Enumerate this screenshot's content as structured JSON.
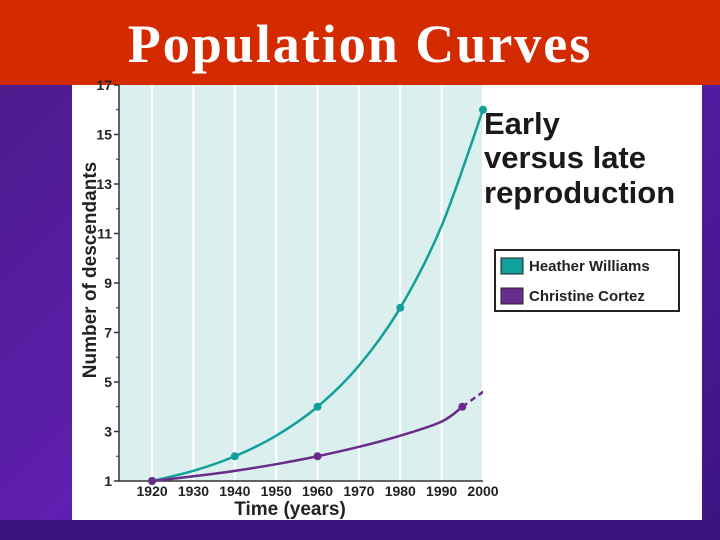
{
  "slide": {
    "title": "Population Curves"
  },
  "chart_data": {
    "type": "line",
    "heading_lines": [
      "Early",
      "versus late",
      "reproduction"
    ],
    "xlabel": "Time (years)",
    "ylabel": "Number of descendants",
    "xlim": [
      1912,
      2000
    ],
    "ylim": [
      1,
      17
    ],
    "x_ticks": [
      1920,
      1930,
      1940,
      1950,
      1960,
      1970,
      1980,
      1990,
      2000
    ],
    "y_ticks": [
      1,
      3,
      5,
      7,
      9,
      11,
      13,
      15,
      17
    ],
    "y_minor_ticks": [
      2,
      4,
      6,
      8,
      10,
      12,
      14,
      16
    ],
    "grid": "vertical",
    "legend_placement": "right",
    "colors": {
      "plot_background": "#dcefef",
      "grid": "#ffffff"
    },
    "series": [
      {
        "name": "Heather Williams",
        "color": "#12a09a",
        "points": [
          {
            "x": 1920,
            "y": 1
          },
          {
            "x": 1940,
            "y": 2
          },
          {
            "x": 1960,
            "y": 4
          },
          {
            "x": 1980,
            "y": 8
          },
          {
            "x": 2000,
            "y": 16
          }
        ],
        "curve": [
          {
            "x": 1920,
            "y": 1
          },
          {
            "x": 1930,
            "y": 1.41
          },
          {
            "x": 1940,
            "y": 2
          },
          {
            "x": 1950,
            "y": 2.83
          },
          {
            "x": 1960,
            "y": 4
          },
          {
            "x": 1970,
            "y": 5.66
          },
          {
            "x": 1980,
            "y": 8
          },
          {
            "x": 1990,
            "y": 11.31
          },
          {
            "x": 2000,
            "y": 16
          }
        ],
        "projection": [
          {
            "x": 2000,
            "y": 16
          },
          {
            "x": 2001,
            "y": 16.6
          },
          {
            "x": 2003,
            "y": 17.6
          }
        ]
      },
      {
        "name": "Christine Cortez",
        "color": "#6a2c8a",
        "points": [
          {
            "x": 1920,
            "y": 1
          },
          {
            "x": 1960,
            "y": 2
          },
          {
            "x": 1995,
            "y": 4
          }
        ],
        "curve": [
          {
            "x": 1920,
            "y": 1
          },
          {
            "x": 1930,
            "y": 1.19
          },
          {
            "x": 1940,
            "y": 1.41
          },
          {
            "x": 1950,
            "y": 1.68
          },
          {
            "x": 1960,
            "y": 2
          },
          {
            "x": 1970,
            "y": 2.38
          },
          {
            "x": 1980,
            "y": 2.83
          },
          {
            "x": 1990,
            "y": 3.4
          },
          {
            "x": 1995,
            "y": 4
          }
        ],
        "projection": [
          {
            "x": 1995,
            "y": 4
          },
          {
            "x": 2000,
            "y": 4.6
          },
          {
            "x": 2007,
            "y": 5.5
          }
        ]
      }
    ]
  }
}
